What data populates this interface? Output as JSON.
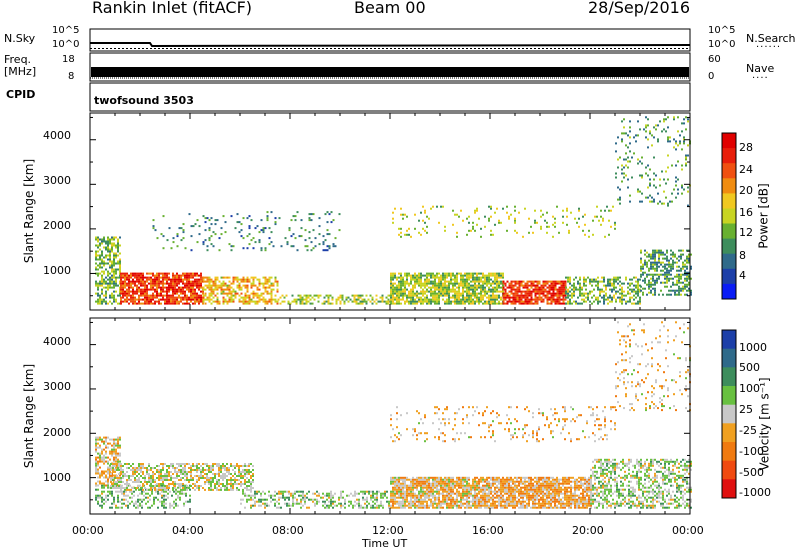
{
  "header": {
    "station": "Rankin Inlet (fitACF)",
    "beam": "Beam 00",
    "date": "28/Sep/2016"
  },
  "noise_panel": {
    "left_label": "N.Sky",
    "right_label": "N.Search",
    "left_ticks": [
      "10^5",
      "10^0"
    ],
    "right_ticks": [
      "10^5",
      "10^0"
    ]
  },
  "freq_panel": {
    "left_label_1": "Freq.",
    "left_label_2": "[MHz]",
    "left_ticks": [
      "18",
      "8"
    ],
    "right_label": "Nave",
    "right_ticks": [
      "60",
      "0"
    ]
  },
  "cpid_panel": {
    "label": "CPID",
    "value": "twofsound 3503"
  },
  "time_axis": {
    "label": "Time UT",
    "ticks": [
      "00:00",
      "04:00",
      "08:00",
      "12:00",
      "16:00",
      "20:00",
      "00:00"
    ]
  },
  "range_axis": {
    "label": "Slant Range [km]",
    "ticks": [
      "1000",
      "2000",
      "3000",
      "4000"
    ]
  },
  "power_colorbar": {
    "label": "Power [dB]",
    "ticks": [
      "4",
      "8",
      "12",
      "16",
      "20",
      "24",
      "28"
    ],
    "colors": [
      "#0a1cf5",
      "#1c3fa8",
      "#2f6a8a",
      "#3d8d5c",
      "#68b030",
      "#c8d422",
      "#f0c820",
      "#f08c10",
      "#f05010",
      "#e81e0a",
      "#e00000"
    ]
  },
  "velocity_colorbar": {
    "label": "Velocity [m s⁻¹]",
    "ticks": [
      "1000",
      "500",
      "100",
      "25",
      "-25",
      "-100",
      "-500",
      "-1000"
    ],
    "colors": [
      "#1c3fa8",
      "#2f6a8a",
      "#3d8d5c",
      "#68c040",
      "#c8c8c8",
      "#f0a020",
      "#f07a10",
      "#f04a10",
      "#e01010"
    ]
  },
  "chart_data": {
    "type": "heatmap",
    "title": "Rankin Inlet (fitACF)",
    "subtitle": "Beam 00",
    "xlabel": "Time UT",
    "ylabel": "Slant Range [km]",
    "x_range_hours": [
      0,
      24
    ],
    "ylim_km": [
      180,
      4600
    ],
    "panels": [
      {
        "name": "Power",
        "colorbar_label": "Power [dB]",
        "colorbar_range": [
          0,
          30
        ],
        "regions": [
          {
            "t0": 0.2,
            "t1": 1.2,
            "r0": 300,
            "r1": 1800,
            "level": 12,
            "density": 0.6
          },
          {
            "t0": 1.2,
            "t1": 4.5,
            "r0": 300,
            "r1": 1000,
            "level": 26,
            "density": 0.8
          },
          {
            "t0": 4.5,
            "t1": 7.5,
            "r0": 300,
            "r1": 900,
            "level": 18,
            "density": 0.6
          },
          {
            "t0": 7.5,
            "t1": 12.0,
            "r0": 300,
            "r1": 500,
            "level": 14,
            "density": 0.5
          },
          {
            "t0": 12.0,
            "t1": 16.5,
            "r0": 300,
            "r1": 1000,
            "level": 14,
            "density": 0.8
          },
          {
            "t0": 16.5,
            "t1": 19.0,
            "r0": 300,
            "r1": 800,
            "level": 26,
            "density": 0.8
          },
          {
            "t0": 19.0,
            "t1": 22.0,
            "r0": 300,
            "r1": 900,
            "level": 12,
            "density": 0.5
          },
          {
            "t0": 22.0,
            "t1": 24.0,
            "r0": 500,
            "r1": 1500,
            "level": 10,
            "density": 0.5
          },
          {
            "t0": 2.5,
            "t1": 10.0,
            "r0": 1500,
            "r1": 2400,
            "level": 8,
            "density": 0.1
          },
          {
            "t0": 12.0,
            "t1": 21.0,
            "r0": 1800,
            "r1": 2500,
            "level": 14,
            "density": 0.1
          },
          {
            "t0": 21.0,
            "t1": 24.0,
            "r0": 2500,
            "r1": 4500,
            "level": 10,
            "density": 0.12
          }
        ]
      },
      {
        "name": "Velocity",
        "colorbar_label": "Velocity [m s⁻¹]",
        "colorbar_range": [
          -1000,
          1000
        ],
        "regions": [
          {
            "t0": 0.2,
            "t1": 1.2,
            "r0": 800,
            "r1": 1900,
            "level": -150,
            "density": 0.6
          },
          {
            "t0": 0.2,
            "t1": 4.0,
            "r0": 300,
            "r1": 800,
            "level": 200,
            "density": 0.4
          },
          {
            "t0": 0.8,
            "t1": 6.5,
            "r0": 700,
            "r1": 1300,
            "level": 0,
            "density": 0.6
          },
          {
            "t0": 6.0,
            "t1": 12.0,
            "r0": 300,
            "r1": 700,
            "level": 150,
            "density": 0.4
          },
          {
            "t0": 12.0,
            "t1": 16.0,
            "r0": 300,
            "r1": 1000,
            "level": -150,
            "density": 0.85
          },
          {
            "t0": 16.0,
            "t1": 20.0,
            "r0": 300,
            "r1": 1000,
            "level": -250,
            "density": 0.85
          },
          {
            "t0": 20.0,
            "t1": 24.0,
            "r0": 300,
            "r1": 1400,
            "level": 120,
            "density": 0.5
          },
          {
            "t0": 12.0,
            "t1": 21.0,
            "r0": 1800,
            "r1": 2600,
            "level": -200,
            "density": 0.12
          },
          {
            "t0": 21.0,
            "t1": 24.0,
            "r0": 2500,
            "r1": 4500,
            "level": -150,
            "density": 0.12
          }
        ]
      }
    ]
  }
}
